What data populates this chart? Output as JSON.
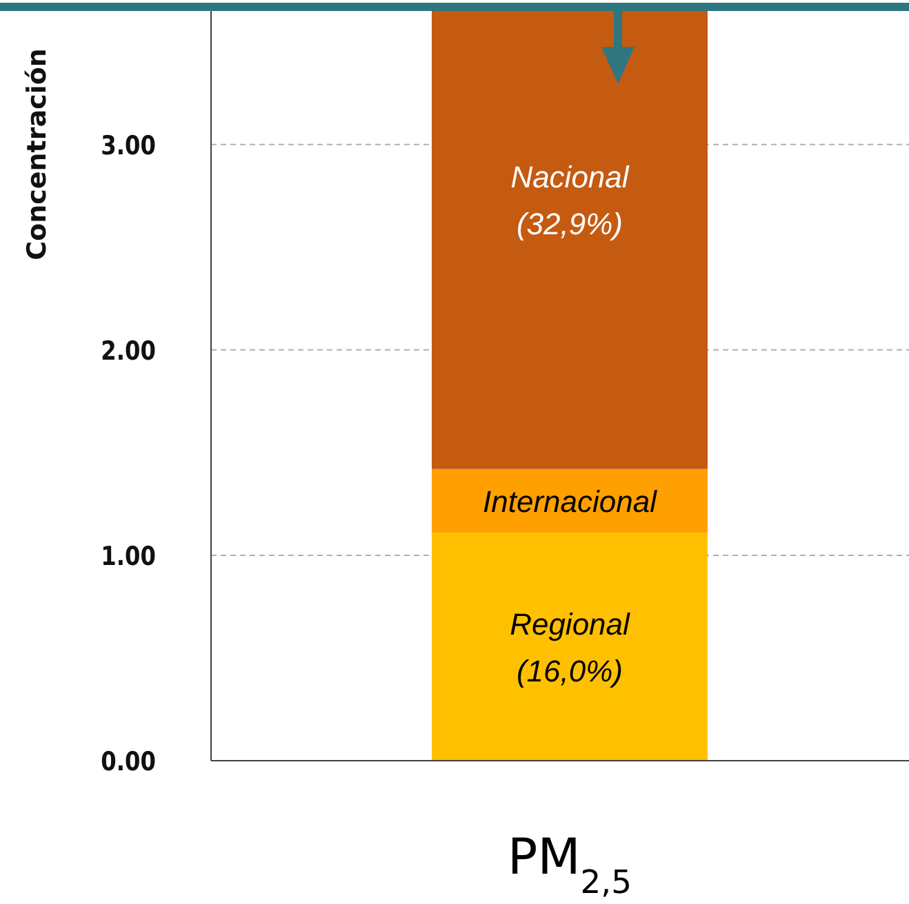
{
  "chart_data": {
    "type": "bar",
    "stacked": true,
    "ylabel": "Concentración",
    "categories": [
      "PM$_{2,5}$"
    ],
    "series": [
      {
        "name": "Regional (16,0%)",
        "color": "#ffc000",
        "values": [
          1.11
        ]
      },
      {
        "name": "Internacional",
        "color": "#ffa000",
        "values": [
          0.31
        ]
      },
      {
        "name": "Nacional (32,9%)",
        "color": "#c55a11",
        "values": [
          2.25
        ]
      }
    ],
    "ylim": [
      0,
      3.67
    ],
    "yticks": [
      {
        "value": 0,
        "label": "0.00"
      },
      {
        "value": 1,
        "label": "1.00"
      },
      {
        "value": 2,
        "label": "2.00"
      },
      {
        "value": 3,
        "label": "3.00"
      }
    ],
    "grid": "y",
    "ref_lines": [
      {
        "axis": "y",
        "value": 3.67,
        "color": "#2e7780"
      }
    ]
  }
}
